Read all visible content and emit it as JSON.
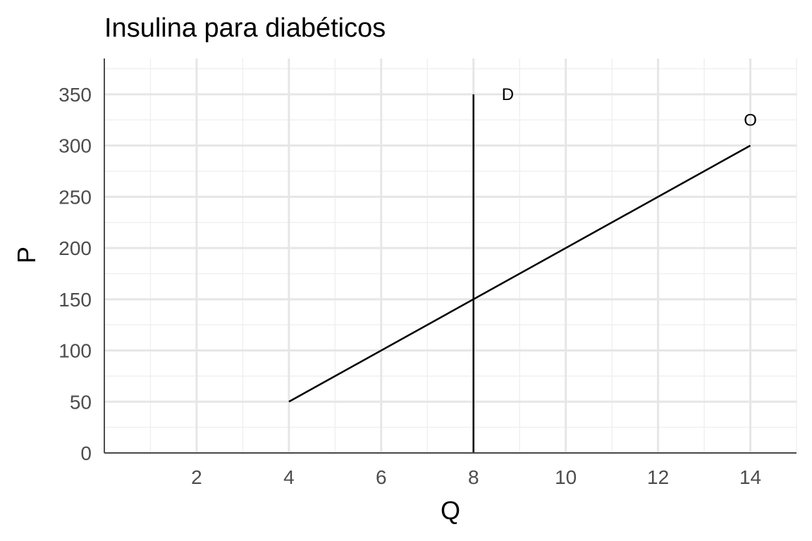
{
  "chart_data": {
    "type": "line",
    "title": "Insulina para diabéticos",
    "xlabel": "Q",
    "ylabel": "P",
    "xlim": [
      0,
      15
    ],
    "ylim": [
      0,
      385
    ],
    "x_ticks": [
      2,
      4,
      6,
      8,
      10,
      12,
      14
    ],
    "y_ticks": [
      0,
      50,
      100,
      150,
      200,
      250,
      300,
      350
    ],
    "grid": true,
    "series": [
      {
        "name": "D",
        "x": [
          8,
          8
        ],
        "y": [
          0,
          350
        ],
        "color": "#000000"
      },
      {
        "name": "O",
        "x": [
          4,
          14
        ],
        "y": [
          50,
          300
        ],
        "color": "#000000"
      }
    ]
  }
}
